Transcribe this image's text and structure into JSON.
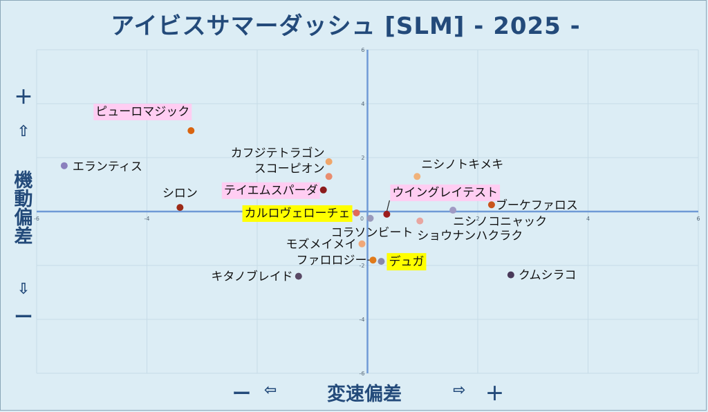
{
  "title": "アイビスサマーダッシュ [SLM]  - 2025 -",
  "y_axis": {
    "plus": "＋",
    "up": "⇧",
    "label": "機動偏差",
    "down": "⇩",
    "minus": "ー"
  },
  "x_axis": {
    "minus": "ー",
    "left_arrow": "⇦",
    "label": "変速偏差",
    "right_arrow": "⇨",
    "plus": "＋"
  },
  "chart_data": {
    "type": "scatter",
    "xlim": [
      -6,
      6
    ],
    "ylim": [
      -6,
      6
    ],
    "x_ticks": [
      -6,
      -4,
      -2,
      0,
      2,
      4,
      6
    ],
    "y_ticks": [
      -6,
      -4,
      -2,
      0,
      2,
      4,
      6
    ],
    "grid": true,
    "points": [
      {
        "name": "ピューロマジック",
        "x": -3.2,
        "y": 3.0,
        "color": "#d9640f",
        "highlight": "pink"
      },
      {
        "name": "エランティス",
        "x": -5.5,
        "y": 1.7,
        "color": "#8a7fbd",
        "highlight": ""
      },
      {
        "name": "カフジテトラゴン",
        "x": -0.7,
        "y": 1.85,
        "color": "#f0a66a",
        "highlight": ""
      },
      {
        "name": "スコーピオン",
        "x": -0.7,
        "y": 1.3,
        "color": "#e98d6f",
        "highlight": ""
      },
      {
        "name": "テイエムスパーダ",
        "x": -0.8,
        "y": 0.8,
        "color": "#8b1c1c",
        "highlight": "pink"
      },
      {
        "name": "シロン",
        "x": -3.4,
        "y": 0.15,
        "color": "#9c2a17",
        "highlight": ""
      },
      {
        "name": "カルロヴェローチェ",
        "x": -0.2,
        "y": -0.05,
        "color": "#e06a5a",
        "highlight": "yellow"
      },
      {
        "name": "ウイングレイテスト",
        "x": 0.35,
        "y": -0.1,
        "color": "#9c1c1c",
        "highlight": "pink"
      },
      {
        "name": "ニシノトキメキ",
        "x": 0.9,
        "y": 1.3,
        "color": "#f0b27a",
        "highlight": ""
      },
      {
        "name": "ブーケファロス",
        "x": 2.25,
        "y": 0.25,
        "color": "#c9541c",
        "highlight": ""
      },
      {
        "name": "ニシノコニャック",
        "x": 1.55,
        "y": 0.05,
        "color": "#a09ac4",
        "highlight": ""
      },
      {
        "name": "コラソンビート",
        "x": 0.05,
        "y": -0.25,
        "color": "#9999bb",
        "highlight": ""
      },
      {
        "name": "ショウナンハクラク",
        "x": 0.95,
        "y": -0.35,
        "color": "#e8a6a0",
        "highlight": ""
      },
      {
        "name": "モズメイメイ",
        "x": -0.1,
        "y": -1.2,
        "color": "#f0a878",
        "highlight": ""
      },
      {
        "name": "ファロロジー",
        "x": 0.1,
        "y": -1.8,
        "color": "#e07a1a",
        "highlight": ""
      },
      {
        "name": "デュガ",
        "x": 0.25,
        "y": -1.85,
        "color": "#8888aa",
        "highlight": "yellow"
      },
      {
        "name": "キタノブレイド",
        "x": -1.25,
        "y": -2.4,
        "color": "#5a4a66",
        "highlight": ""
      },
      {
        "name": "クムシラコ",
        "x": 2.6,
        "y": -2.35,
        "color": "#4a3a5a",
        "highlight": ""
      }
    ]
  }
}
